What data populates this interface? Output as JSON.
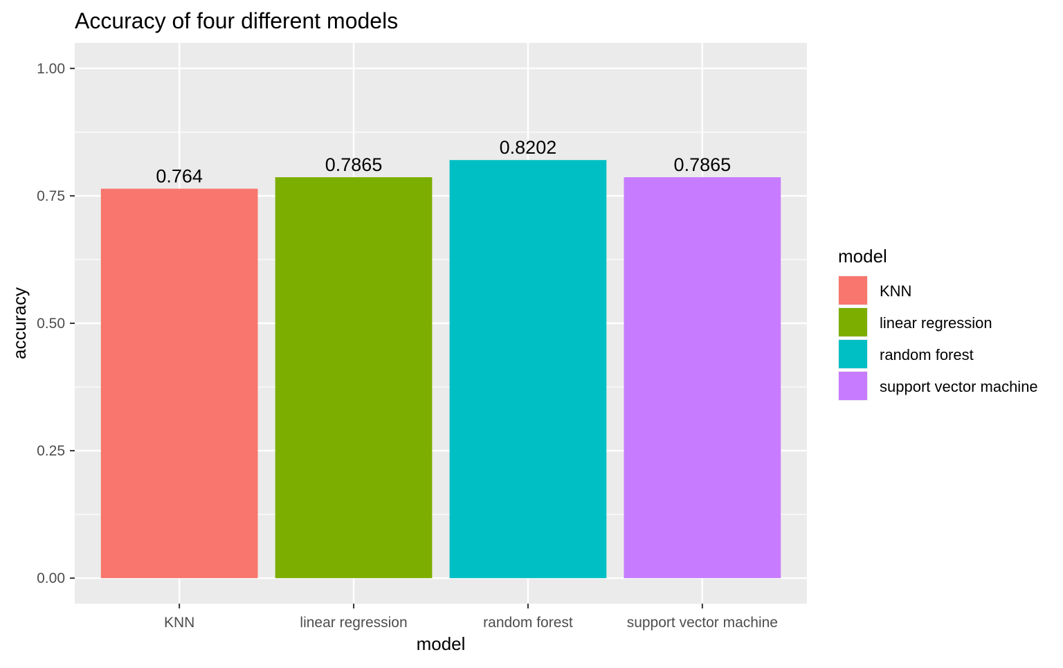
{
  "chart_data": {
    "type": "bar",
    "title": "Accuracy of four different models",
    "xlabel": "model",
    "ylabel": "accuracy",
    "categories": [
      "KNN",
      "linear regression",
      "random forest",
      "support vector machine"
    ],
    "values": [
      0.764,
      0.7865,
      0.8202,
      0.7865
    ],
    "data_labels": [
      "0.764",
      "0.7865",
      "0.8202",
      "0.7865"
    ],
    "colors": [
      "#F8766D",
      "#7CAE00",
      "#00BFC4",
      "#C77CFF"
    ],
    "ylim": [
      -0.05,
      1.05
    ],
    "yticks": [
      0,
      0.25,
      0.5,
      0.75,
      1.0
    ],
    "ytick_labels": [
      "0.00",
      "0.25",
      "0.50",
      "0.75",
      "1.00"
    ],
    "grid": true,
    "panel_background": "#EBEBEB",
    "legend": {
      "title": "model",
      "position": "right",
      "entries": [
        "KNN",
        "linear regression",
        "random forest",
        "support vector machine"
      ]
    }
  }
}
